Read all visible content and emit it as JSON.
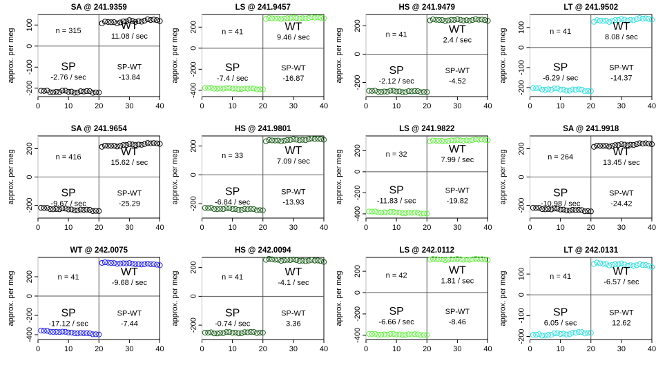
{
  "chart_data": [
    {
      "type": "scatter",
      "title": "SA @ 241.9359",
      "ylabel": "approx. per meg",
      "color": "#000000",
      "yticks": [
        -200,
        -100,
        0,
        100
      ],
      "ylim": [
        -240,
        150
      ],
      "xlim": [
        0,
        40
      ],
      "xticks": [
        0,
        10,
        20,
        30,
        40
      ],
      "n_label": "n = 315",
      "wt_rate": "11.08 / sec",
      "sp_rate": "-2.76 / sec",
      "spwt_value": "-13.84",
      "sp_start": -215,
      "sp_end": -218,
      "wt_start": 110,
      "wt_end": 125
    },
    {
      "type": "scatter",
      "title": "LS @ 241.9457",
      "ylabel": "approx. per meg",
      "color": "#66ee44",
      "yticks": [
        -400,
        -200,
        0,
        200
      ],
      "ylim": [
        -460,
        320
      ],
      "xlim": [
        0,
        40
      ],
      "xticks": [
        0,
        10,
        20,
        30,
        40
      ],
      "n_label": "n = 41",
      "wt_rate": "9.46 / sec",
      "sp_rate": "-7.4 / sec",
      "spwt_value": "-16.87",
      "sp_start": -380,
      "sp_end": -388,
      "wt_start": 280,
      "wt_end": 290
    },
    {
      "type": "scatter",
      "title": "HS @ 241.9479",
      "ylabel": "approx. per meg",
      "color": "#1a5a1a",
      "yticks": [
        -200,
        0,
        200
      ],
      "ylim": [
        -300,
        280
      ],
      "xlim": [
        0,
        40
      ],
      "xticks": [
        0,
        10,
        20,
        30,
        40
      ],
      "n_label": "n = 41",
      "wt_rate": "2.4 / sec",
      "sp_rate": "-2.12 / sec",
      "spwt_value": "-4.52",
      "sp_start": -262,
      "sp_end": -265,
      "wt_start": 240,
      "wt_end": 242
    },
    {
      "type": "scatter",
      "title": "LT @ 241.9502",
      "ylabel": "approx. per meg",
      "color": "#33dddd",
      "yticks": [
        -200,
        -100,
        0,
        100
      ],
      "ylim": [
        -245,
        165
      ],
      "xlim": [
        0,
        40
      ],
      "xticks": [
        0,
        10,
        20,
        30,
        40
      ],
      "n_label": "n = 41",
      "wt_rate": "8.08 / sec",
      "sp_rate": "-6.29 / sec",
      "spwt_value": "-14.37",
      "sp_start": -205,
      "sp_end": -215,
      "wt_start": 130,
      "wt_end": 145
    },
    {
      "type": "scatter",
      "title": "SA @ 241.9654",
      "ylabel": "approx. per meg",
      "color": "#000000",
      "yticks": [
        -200,
        0,
        200
      ],
      "ylim": [
        -290,
        290
      ],
      "xlim": [
        0,
        40
      ],
      "xticks": [
        0,
        10,
        20,
        30,
        40
      ],
      "n_label": "n = 416",
      "wt_rate": "15.62 / sec",
      "sp_rate": "-9.67 / sec",
      "spwt_value": "-25.29",
      "sp_start": -220,
      "sp_end": -238,
      "wt_start": 215,
      "wt_end": 240
    },
    {
      "type": "scatter",
      "title": "HS @ 241.9801",
      "ylabel": "approx. per meg",
      "color": "#1a5a1a",
      "yticks": [
        -200,
        0,
        200
      ],
      "ylim": [
        -300,
        270
      ],
      "xlim": [
        0,
        40
      ],
      "xticks": [
        0,
        10,
        20,
        30,
        40
      ],
      "n_label": "n = 33",
      "wt_rate": "7.09 / sec",
      "sp_rate": "-6.84 / sec",
      "spwt_value": "-13.93",
      "sp_start": -232,
      "sp_end": -243,
      "wt_start": 235,
      "wt_end": 250
    },
    {
      "type": "scatter",
      "title": "LS @ 241.9822",
      "ylabel": "approx. per meg",
      "color": "#66ee44",
      "yticks": [
        -400,
        -200,
        0,
        200
      ],
      "ylim": [
        -440,
        340
      ],
      "xlim": [
        0,
        40
      ],
      "xticks": [
        0,
        10,
        20,
        30,
        40
      ],
      "n_label": "n = 32",
      "wt_rate": "7.99 / sec",
      "sp_rate": "-11.83 / sec",
      "spwt_value": "-19.82",
      "sp_start": -380,
      "sp_end": -395,
      "wt_start": 290,
      "wt_end": 305
    },
    {
      "type": "scatter",
      "title": "SA @ 241.9918",
      "ylabel": "approx. per meg",
      "color": "#000000",
      "yticks": [
        -200,
        0,
        200
      ],
      "ylim": [
        -290,
        290
      ],
      "xlim": [
        0,
        40
      ],
      "xticks": [
        0,
        10,
        20,
        30,
        40
      ],
      "n_label": "n = 264",
      "wt_rate": "13.45 / sec",
      "sp_rate": "-10.98 / sec",
      "spwt_value": "-24.42",
      "sp_start": -220,
      "sp_end": -240,
      "wt_start": 215,
      "wt_end": 238
    },
    {
      "type": "scatter",
      "title": "WT @ 242.0075",
      "ylabel": "approx. per meg",
      "color": "#2222dd",
      "yticks": [
        -400,
        -200,
        0,
        200
      ],
      "ylim": [
        -450,
        400
      ],
      "xlim": [
        0,
        40
      ],
      "xticks": [
        0,
        10,
        20,
        30,
        40
      ],
      "n_label": "n = 41",
      "wt_rate": "-9.68 / sec",
      "sp_rate": "-17.12 / sec",
      "spwt_value": "-7.44",
      "sp_start": -360,
      "sp_end": -395,
      "wt_start": 345,
      "wt_end": 325
    },
    {
      "type": "scatter",
      "title": "HS @ 242.0094",
      "ylabel": "approx. per meg",
      "color": "#1a5a1a",
      "yticks": [
        -200,
        0,
        200
      ],
      "ylim": [
        -300,
        270
      ],
      "xlim": [
        0,
        40
      ],
      "xticks": [
        0,
        10,
        20,
        30,
        40
      ],
      "n_label": "n = 41",
      "wt_rate": "-4.1 / sec",
      "sp_rate": "-0.74 / sec",
      "spwt_value": "3.36",
      "sp_start": -255,
      "sp_end": -250,
      "wt_start": 255,
      "wt_end": 245
    },
    {
      "type": "scatter",
      "title": "LS @ 242.0112",
      "ylabel": "approx. per meg",
      "color": "#66ee44",
      "yticks": [
        -400,
        -200,
        0,
        200
      ],
      "ylim": [
        -440,
        330
      ],
      "xlim": [
        0,
        40
      ],
      "xticks": [
        0,
        10,
        20,
        30,
        40
      ],
      "n_label": "n = 42",
      "wt_rate": "1.81 / sec",
      "sp_rate": "-6.66 / sec",
      "spwt_value": "-8.46",
      "sp_start": -390,
      "sp_end": -395,
      "wt_start": 310,
      "wt_end": 312
    },
    {
      "type": "scatter",
      "title": "LT @ 242.0131",
      "ylabel": "approx. per meg",
      "color": "#33dddd",
      "yticks": [
        -200,
        -100,
        0,
        100
      ],
      "ylim": [
        -215,
        180
      ],
      "xlim": [
        0,
        40
      ],
      "xticks": [
        0,
        10,
        20,
        30,
        40
      ],
      "n_label": "n = 41",
      "wt_rate": "-6.57 / sec",
      "sp_rate": "6.05 / sec",
      "spwt_value": "12.62",
      "sp_start": -195,
      "sp_end": -180,
      "wt_start": 150,
      "wt_end": 140
    }
  ],
  "labels": {
    "wt": "WT",
    "sp": "SP",
    "spwt": "SP-WT"
  }
}
